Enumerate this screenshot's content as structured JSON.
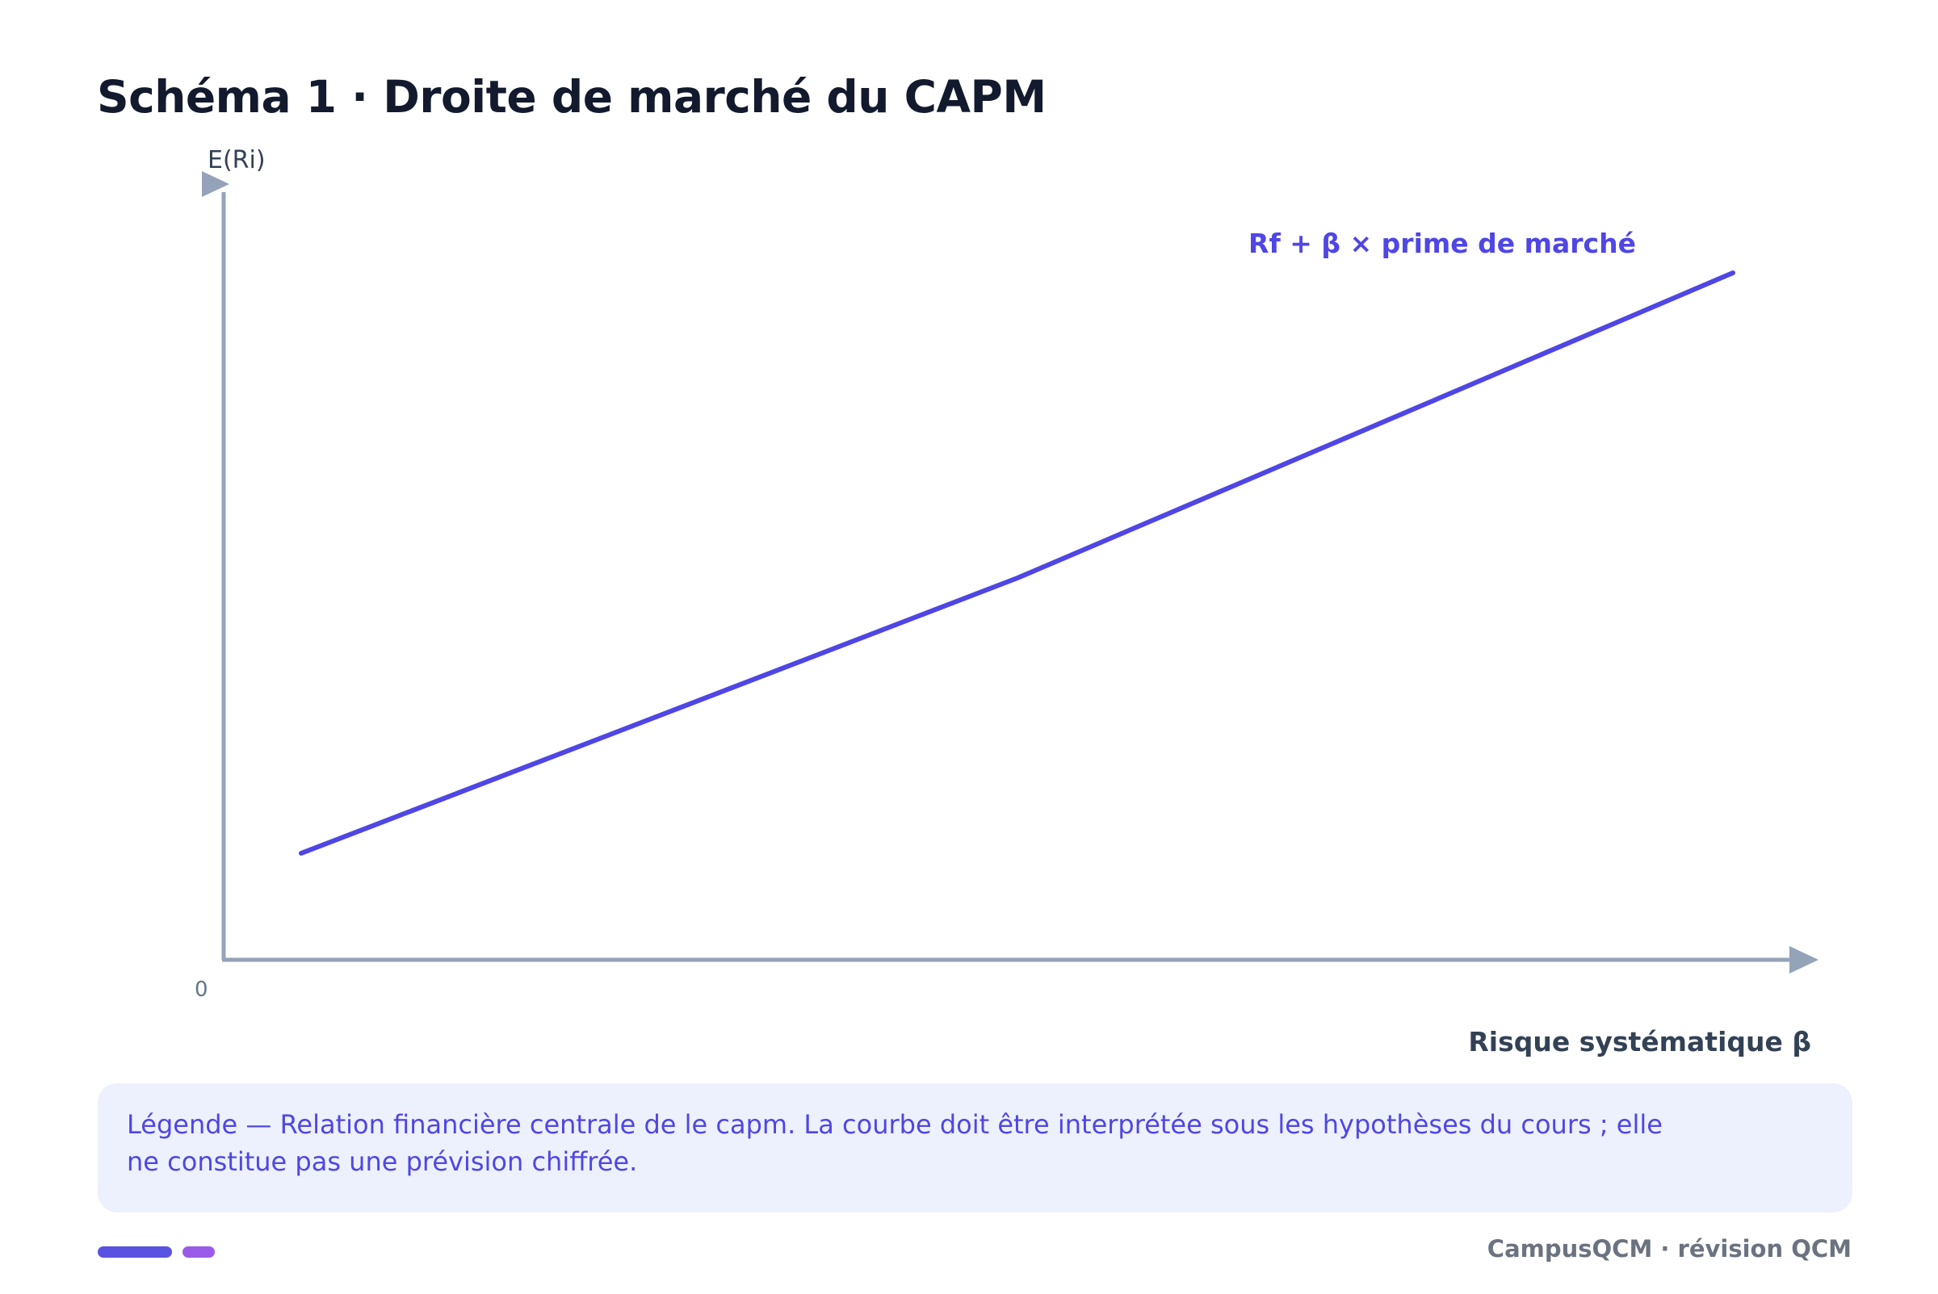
{
  "header": {
    "title": "Schéma 1 · Droite de marché du CAPM"
  },
  "diagram": {
    "y_axis_label": "E(Ri)",
    "x_axis_label": "Risque systématique β",
    "origin_label": "0",
    "line_label": "Rf + β × prime de marché",
    "line_color": "#4f46e5",
    "axis_color": "#94a3b8"
  },
  "legend": {
    "text": "Légende — Relation financière centrale de le capm. La courbe doit être interprétée sous les hypothèses du cours ; elle ne constitue pas une prévision chiffrée."
  },
  "footer": {
    "brand": "CampusQCM · révision QCM",
    "accent_colors": [
      "#5a52e0",
      "#9a5be8"
    ]
  }
}
